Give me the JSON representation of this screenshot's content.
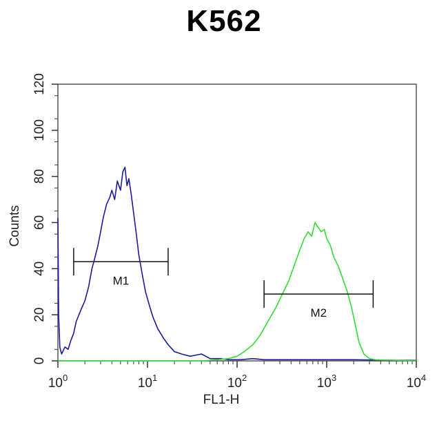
{
  "chart_data": {
    "type": "line",
    "title": "K562",
    "xlabel": "FL1-H",
    "ylabel": "Counts",
    "xscale": "log",
    "xlim": [
      1,
      10000
    ],
    "ylim": [
      0,
      120
    ],
    "x_ticks": [
      {
        "value": 1,
        "base": "10",
        "exp": "0"
      },
      {
        "value": 10,
        "base": "10",
        "exp": "1"
      },
      {
        "value": 100,
        "base": "10",
        "exp": "2"
      },
      {
        "value": 1000,
        "base": "10",
        "exp": "3"
      },
      {
        "value": 10000,
        "base": "10",
        "exp": "4"
      }
    ],
    "y_ticks": [
      0,
      20,
      40,
      60,
      80,
      100,
      120
    ],
    "grid": false,
    "series": [
      {
        "color": "#1a1aa0",
        "points": [
          [
            1.0,
            62
          ],
          [
            1.02,
            20
          ],
          [
            1.05,
            6
          ],
          [
            1.1,
            3
          ],
          [
            1.2,
            6
          ],
          [
            1.3,
            5
          ],
          [
            1.4,
            9
          ],
          [
            1.5,
            12
          ],
          [
            1.6,
            17
          ],
          [
            1.8,
            22
          ],
          [
            2.0,
            26
          ],
          [
            2.2,
            32
          ],
          [
            2.4,
            40
          ],
          [
            2.6,
            45
          ],
          [
            2.8,
            50
          ],
          [
            3.0,
            56
          ],
          [
            3.2,
            62
          ],
          [
            3.5,
            68
          ],
          [
            3.8,
            71
          ],
          [
            4.0,
            74
          ],
          [
            4.3,
            70
          ],
          [
            4.6,
            78
          ],
          [
            5.0,
            74
          ],
          [
            5.3,
            82
          ],
          [
            5.6,
            84
          ],
          [
            5.9,
            76
          ],
          [
            6.2,
            79
          ],
          [
            6.6,
            72
          ],
          [
            7.0,
            64
          ],
          [
            7.5,
            55
          ],
          [
            8.0,
            46
          ],
          [
            8.7,
            38
          ],
          [
            9.5,
            30
          ],
          [
            10.5,
            24
          ],
          [
            11.5,
            19
          ],
          [
            13,
            14
          ],
          [
            15,
            10
          ],
          [
            17,
            7
          ],
          [
            20,
            4
          ],
          [
            24,
            3
          ],
          [
            30,
            2
          ],
          [
            40,
            3
          ],
          [
            50,
            1
          ],
          [
            65,
            1
          ],
          [
            80,
            0.5
          ],
          [
            110,
            0.5
          ],
          [
            150,
            1
          ],
          [
            200,
            0.5
          ],
          [
            300,
            0.5
          ],
          [
            500,
            0.5
          ],
          [
            800,
            0.5
          ],
          [
            1200,
            0.5
          ],
          [
            2000,
            0.5
          ],
          [
            5000,
            0.3
          ],
          [
            10000,
            0.2
          ]
        ]
      },
      {
        "color": "#33dd33",
        "points": [
          [
            1.0,
            0
          ],
          [
            40,
            0
          ],
          [
            60,
            0.5
          ],
          [
            80,
            1
          ],
          [
            100,
            2
          ],
          [
            120,
            4
          ],
          [
            150,
            7
          ],
          [
            180,
            11
          ],
          [
            220,
            17
          ],
          [
            270,
            23
          ],
          [
            320,
            29
          ],
          [
            380,
            35
          ],
          [
            440,
            42
          ],
          [
            500,
            48
          ],
          [
            560,
            53
          ],
          [
            620,
            56
          ],
          [
            680,
            54
          ],
          [
            740,
            60
          ],
          [
            800,
            58
          ],
          [
            870,
            56
          ],
          [
            940,
            57
          ],
          [
            1000,
            53
          ],
          [
            1100,
            50
          ],
          [
            1200,
            45
          ],
          [
            1350,
            41
          ],
          [
            1500,
            36
          ],
          [
            1700,
            30
          ],
          [
            1900,
            23
          ],
          [
            2100,
            15
          ],
          [
            2300,
            8
          ],
          [
            2600,
            3
          ],
          [
            3000,
            1
          ],
          [
            3500,
            0.5
          ],
          [
            10000,
            0
          ]
        ]
      }
    ],
    "gates": [
      {
        "label": "M1",
        "x_start": 1.5,
        "x_end": 17,
        "y": 43
      },
      {
        "label": "M2",
        "x_start": 200,
        "x_end": 3300,
        "y": 29
      }
    ]
  }
}
